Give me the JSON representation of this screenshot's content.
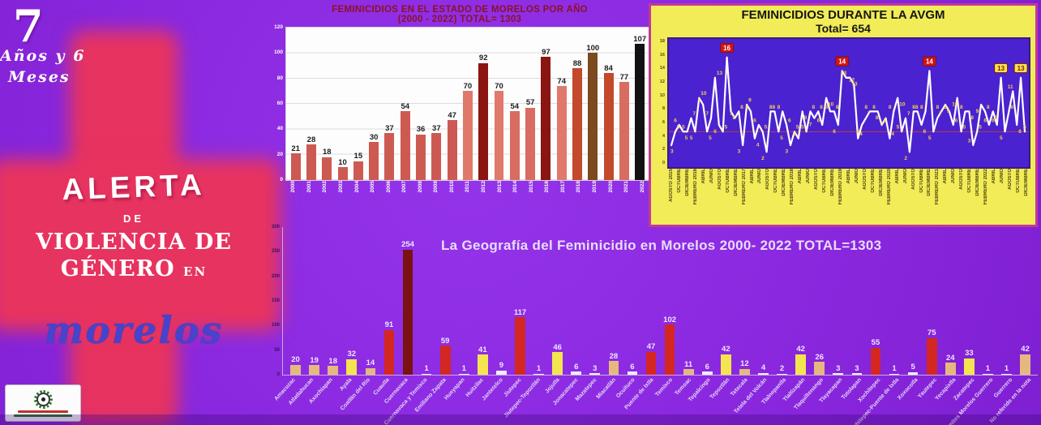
{
  "left_panel": {
    "years_big": "7",
    "duration_line1": "Años y 6",
    "duration_line2": "Meses",
    "alerta": "ALERTA",
    "de": "DE",
    "violencia": "VIOLENCIA DE",
    "genero": "GÉNERO",
    "en": "EN",
    "morelos": "morelos",
    "logo": "cidhm-emblem"
  },
  "colors": {
    "background_purple": "#8a28df",
    "cross_pink": "#e7335f",
    "avgm_card_yellow": "#f1ec57",
    "avgm_card_border": "#c03a98",
    "avgm_plot_indigo": "#4a22cf",
    "line_white": "#ffffff",
    "point_label_yellow": "#f2cf4e",
    "badge_red": "#cf1512",
    "badge_yellow": "#f4e44f",
    "avg_line_red": "#b94040",
    "annual_title_red": "#8b1228",
    "geo_title_lavender": "#e8dcfa"
  },
  "chart_data": [
    {
      "id": "annual",
      "type": "bar",
      "title_line1": "FEMINICIDIOS EN EL ESTADO DE MORELOS POR AÑO",
      "title_line2": "(2000 - 2022)  TOTAL= 1303",
      "total": 1303,
      "categories": [
        "2000",
        "2001",
        "2002",
        "2003",
        "2004",
        "2005",
        "2006",
        "2007",
        "2008",
        "2009",
        "2010",
        "2011",
        "2012",
        "2013",
        "2014",
        "2015",
        "2016",
        "2017",
        "2018",
        "2019",
        "2020",
        "2021",
        "2022"
      ],
      "values": [
        21,
        28,
        18,
        10,
        15,
        30,
        37,
        54,
        36,
        37,
        47,
        70,
        92,
        70,
        54,
        57,
        97,
        74,
        88,
        100,
        84,
        77,
        107
      ],
      "bar_colors": [
        "#cd5a52",
        "#cd5a52",
        "#cd5a52",
        "#cd5a52",
        "#cd5a52",
        "#cd5a52",
        "#cd5a52",
        "#cd5a52",
        "#cd5a52",
        "#cd5a52",
        "#cd5a52",
        "#e0786c",
        "#8b1510",
        "#e0786c",
        "#d96c60",
        "#d96c60",
        "#8b1510",
        "#e0786c",
        "#c2492b",
        "#7c4a1e",
        "#c2492b",
        "#d96c60",
        "#121212"
      ],
      "ylim": [
        0,
        120
      ],
      "yticks": [
        0,
        20,
        40,
        60,
        80,
        100,
        120
      ],
      "grid": true
    },
    {
      "id": "avgm",
      "type": "line",
      "title_line1": "FEMINICIDIOS DURANTE LA AVGM",
      "title_line2": "Total= 654",
      "total": 654,
      "x_labels": [
        "AGOSTO 2015",
        "OCTUBRE",
        "DICIEMBRE",
        "FEBRERO 2016",
        "ABRIL",
        "JUNIO",
        "AGOSTO",
        "OCTUBRE",
        "DICIEMBRE",
        "FEBRERO 2017",
        "ABRIL",
        "JUNIO",
        "AGOSTO",
        "OCTUBRE",
        "DICIEMBRE",
        "FEBRERO 2018",
        "ABRIL",
        "JUNIO",
        "AGOSTO",
        "OCTUBRE",
        "DICIEMBRE",
        "FEBRERO 2019",
        "ABRIL",
        "JUNIO",
        "AGOSTO",
        "OCTUBRE",
        "DICIEMBRE",
        "FEBRERO 2020",
        "ABRIL",
        "JUNIO",
        "AGOSTO",
        "OCTUBRE",
        "DICIEMBRE",
        "FEBRERO 2021",
        "ABRIL",
        "JUNIO",
        "AGOSTO",
        "OCTUBRE",
        "DICIEMBRE",
        "FEBRERO 2022",
        "ABRIL",
        "JUNIO",
        "AGOSTO",
        "OCTUBRE",
        "DICIEMBRE"
      ],
      "values": [
        3,
        5,
        6,
        5,
        5,
        7,
        5,
        10,
        9,
        5,
        7,
        13,
        6,
        5,
        16,
        8,
        7,
        8,
        3,
        9,
        8,
        4,
        6,
        5,
        2,
        8,
        8,
        5,
        8,
        6,
        3,
        5,
        4,
        8,
        5,
        8,
        7,
        8,
        6,
        10,
        8,
        8,
        6,
        14,
        13,
        13,
        12,
        4,
        6,
        7,
        8,
        8,
        8,
        6,
        7,
        4,
        8,
        10,
        5,
        7,
        2,
        8,
        8,
        6,
        8,
        14,
        5,
        7,
        8,
        9,
        8,
        6,
        10,
        5,
        8,
        8,
        3,
        5,
        9,
        8,
        6,
        8,
        6,
        13,
        5,
        8,
        11,
        6,
        13,
        5
      ],
      "ylim": [
        0,
        18
      ],
      "yticks": [
        0,
        2,
        4,
        6,
        8,
        10,
        12,
        14,
        16,
        18
      ],
      "avg_line": 5,
      "red_badge_indices": [
        14,
        43,
        65
      ],
      "yellow_badge_indices": [
        83,
        88
      ],
      "legend_position": "none",
      "grid": false
    },
    {
      "id": "geo",
      "type": "bar",
      "title": "La Geografía del Feminicidio en Morelos 2000- 2022   TOTAL=1303",
      "total": 1303,
      "categories": [
        "Amacuzac",
        "Atlatlahucan",
        "Axochiapan",
        "Ayala",
        "Coatlán del Río",
        "Cuautla",
        "Cuernavaca",
        "Cuernavaca y Temixco",
        "Emiliano Zapata",
        "Hueyapan",
        "Huitzilac",
        "Jantetelco",
        "Jiutepec",
        "Jiutepec-Tepoztlán",
        "Jojutla",
        "Jonacatepec",
        "Mazatepec",
        "Miacatlán",
        "Ocuituco",
        "Puente de Ixtla",
        "Temixco",
        "Temoac",
        "Tepalcingo",
        "Tepoztlán",
        "Tetecala",
        "Tetela del Volcán",
        "Tlalnepantla",
        "Tlaltizapán",
        "Tlaquiltenango",
        "Tlayacapan",
        "Totolapan",
        "Xochitepec",
        "Xochitepec-Puente de Ixtla",
        "Xoxocotla",
        "Yautepec",
        "Yecapixtla",
        "Zacatepec",
        "Límites Morelos Guerrero",
        "Guerrero",
        "No referido en la nota"
      ],
      "values": [
        20,
        19,
        18,
        32,
        14,
        91,
        254,
        1,
        59,
        1,
        41,
        9,
        117,
        1,
        46,
        6,
        3,
        28,
        6,
        47,
        102,
        11,
        6,
        42,
        12,
        4,
        2,
        42,
        26,
        3,
        3,
        55,
        1,
        5,
        75,
        24,
        33,
        1,
        1,
        42
      ],
      "bar_color_keys": [
        "tan",
        "tan",
        "tan",
        "yellow",
        "tan",
        "red",
        "maroon",
        "white",
        "red",
        "white",
        "yellow",
        "white",
        "red",
        "white",
        "yellow",
        "white",
        "white",
        "tan",
        "white",
        "red",
        "red",
        "tan",
        "white",
        "yellow",
        "tan",
        "white",
        "white",
        "yellow",
        "tan",
        "white",
        "white",
        "red",
        "white",
        "white",
        "red",
        "tan",
        "yellow",
        "white",
        "white",
        "tan"
      ],
      "palette": {
        "tan": "#e5b97e",
        "yellow": "#f4e44f",
        "red": "#d42722",
        "maroon": "#7a1113",
        "white": "#f2ebfa"
      },
      "ylim": [
        0,
        300
      ],
      "yticks": [
        0,
        50,
        100,
        150,
        200,
        250,
        300
      ],
      "grid": false
    }
  ]
}
